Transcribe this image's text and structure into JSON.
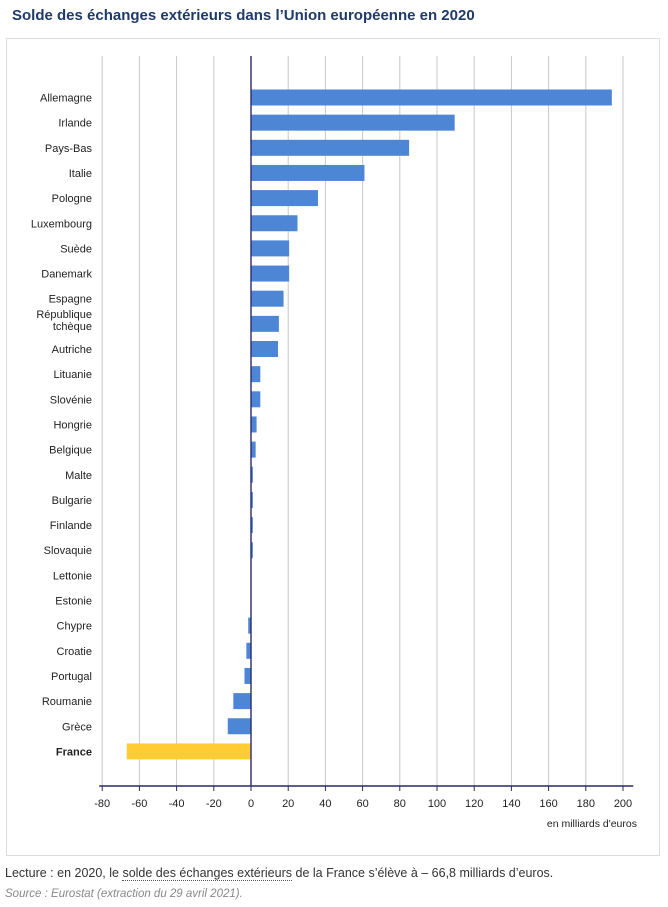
{
  "header": {
    "title": "Solde des échanges extérieurs dans l’Union européenne en 2020"
  },
  "footer": {
    "reading_prefix": "Lecture : en 2020, le ",
    "reading_link": "solde des échanges extérieurs",
    "reading_suffix": " de la France s’élève à –  66,8 milliards d’euros.",
    "source": "Source : Eurostat (extraction du 29 avril 2021)."
  },
  "colors": {
    "bar": "#4e86d6",
    "highlight": "#ffcc33",
    "grid": "#c8c8c8",
    "axis": "#2b2b6b",
    "title": "#1f3a6b"
  },
  "chart_data": {
    "type": "bar",
    "orientation": "horizontal",
    "title": "Solde des échanges extérieurs dans l’Union européenne en 2020",
    "xlabel": "en milliards d'euros",
    "ylabel": "",
    "xlim": [
      -80,
      205
    ],
    "xticks": [
      -80,
      -60,
      -40,
      -20,
      0,
      20,
      40,
      60,
      80,
      100,
      120,
      140,
      160,
      180,
      200
    ],
    "grid": true,
    "legend": "none",
    "highlight": "France",
    "categories": [
      "Allemagne",
      "Irlande",
      "Pays-Bas",
      "Italie",
      "Pologne",
      "Luxembourg",
      "Suède",
      "Danemark",
      "Espagne",
      "République tchèque",
      "Autriche",
      "Lituanie",
      "Slovénie",
      "Hongrie",
      "Belgique",
      "Malte",
      "Bulgarie",
      "Finlande",
      "Slovaquie",
      "Lettonie",
      "Estonie",
      "Chypre",
      "Croatie",
      "Portugal",
      "Roumanie",
      "Grèce",
      "France"
    ],
    "values": [
      194,
      109.5,
      85,
      61,
      36,
      25,
      20.5,
      20.5,
      17.5,
      15,
      14.5,
      5,
      5,
      3,
      2.5,
      1,
      1,
      1,
      1,
      0.2,
      0.2,
      -1.5,
      -2.5,
      -3.5,
      -9.5,
      -12.5,
      -66.8
    ]
  }
}
